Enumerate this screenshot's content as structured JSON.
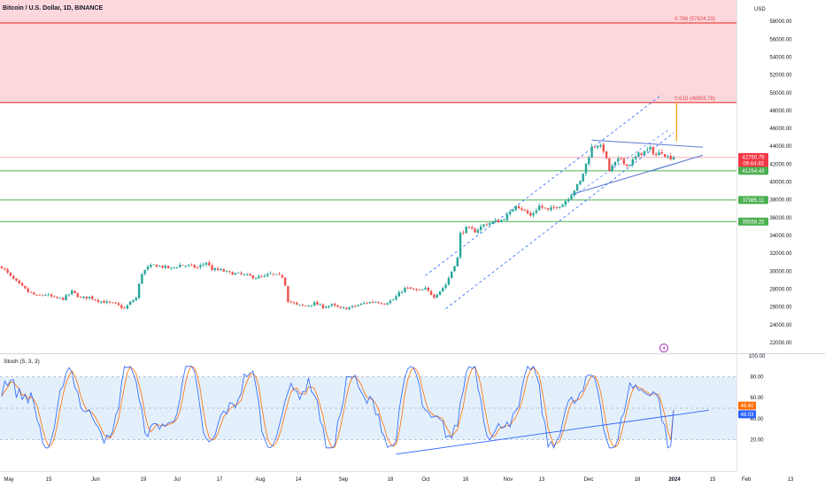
{
  "header": {
    "title": "Bitcoin / U.S. Dollar, 1D, BINANCE",
    "currency": "USD"
  },
  "colors": {
    "up": "#26a69a",
    "down": "#ef5350",
    "resistance": "#e53935",
    "support": "#4caf50",
    "channel": "#2962ff",
    "triangle": "#5b7ccf",
    "fib_zone": "#fcd8dc",
    "stoch_k": "#2962ff",
    "stoch_d": "#ff6d00",
    "stoch_band": "#e3f0fc"
  },
  "chart_data": [
    {
      "type": "candlestick",
      "title": "Bitcoin / U.S. Dollar, 1D, BINANCE",
      "x_ticks": [
        "May",
        "15",
        "Jun",
        "19",
        "Jul",
        "17",
        "Aug",
        "14",
        "Sep",
        "18",
        "Oct",
        "16",
        "Nov",
        "13",
        "Dec",
        "18",
        "2024",
        "15",
        "Feb",
        "13"
      ],
      "y_ticks": [
        "58000.00",
        "56000.00",
        "54000.00",
        "52000.00",
        "50000.00",
        "48000.00",
        "46000.00",
        "44000.00",
        "42000.00",
        "40000.00",
        "38000.00",
        "36000.00",
        "34000.00",
        "32000.00",
        "30000.00",
        "28000.00",
        "26000.00",
        "24000.00",
        "22000.00"
      ],
      "ylim": [
        20800,
        60400
      ],
      "grid": false,
      "fib_levels": [
        {
          "label": "0.786 (57824.23)",
          "value": 57824.23
        },
        {
          "label": "0.618 (48903.78)",
          "value": 48903.78
        }
      ],
      "price_tags": [
        {
          "value": 42750.79,
          "label": "42750.79",
          "sublabel": "09:44:43",
          "color": "#f23645"
        },
        {
          "value": 41254.43,
          "label": "41254.43",
          "color": "#4caf50"
        },
        {
          "value": 37985.11,
          "label": "37985.11",
          "color": "#4caf50"
        },
        {
          "value": 35558.25,
          "label": "35558.25",
          "color": "#4caf50"
        }
      ],
      "close_path": [
        [
          0,
          30500
        ],
        [
          3,
          29400
        ],
        [
          6,
          28500
        ],
        [
          9,
          27700
        ],
        [
          12,
          27200
        ],
        [
          15,
          27400
        ],
        [
          18,
          27000
        ],
        [
          21,
          26900
        ],
        [
          24,
          27700
        ],
        [
          27,
          27000
        ],
        [
          30,
          27100
        ],
        [
          33,
          26700
        ],
        [
          36,
          26500
        ],
        [
          39,
          26300
        ],
        [
          42,
          25800
        ],
        [
          44,
          26500
        ],
        [
          46,
          27000
        ],
        [
          47,
          28500
        ],
        [
          48,
          29800
        ],
        [
          50,
          30400
        ],
        [
          52,
          30700
        ],
        [
          55,
          30500
        ],
        [
          58,
          30300
        ],
        [
          61,
          30700
        ],
        [
          64,
          30600
        ],
        [
          67,
          30400
        ],
        [
          70,
          31000
        ],
        [
          72,
          30200
        ],
        [
          75,
          30100
        ],
        [
          78,
          29800
        ],
        [
          81,
          29700
        ],
        [
          84,
          29500
        ],
        [
          87,
          29300
        ],
        [
          90,
          29400
        ],
        [
          92,
          29700
        ],
        [
          94,
          29500
        ],
        [
          96,
          29400
        ],
        [
          97,
          28500
        ],
        [
          98,
          26700
        ],
        [
          101,
          26200
        ],
        [
          104,
          26100
        ],
        [
          107,
          26400
        ],
        [
          110,
          26000
        ],
        [
          113,
          26200
        ],
        [
          116,
          25800
        ],
        [
          119,
          25900
        ],
        [
          122,
          26200
        ],
        [
          125,
          26500
        ],
        [
          128,
          26600
        ],
        [
          131,
          26400
        ],
        [
          134,
          26800
        ],
        [
          136,
          27500
        ],
        [
          138,
          28100
        ],
        [
          140,
          28000
        ],
        [
          143,
          27800
        ],
        [
          145,
          28000
        ],
        [
          148,
          27200
        ],
        [
          150,
          27800
        ],
        [
          152,
          28500
        ],
        [
          154,
          30000
        ],
        [
          156,
          31500
        ],
        [
          157,
          34200
        ],
        [
          159,
          34800
        ],
        [
          162,
          34500
        ],
        [
          165,
          35200
        ],
        [
          168,
          35500
        ],
        [
          171,
          35700
        ],
        [
          174,
          36500
        ],
        [
          176,
          37500
        ],
        [
          178,
          37000
        ],
        [
          181,
          36200
        ],
        [
          184,
          37300
        ],
        [
          187,
          36800
        ],
        [
          190,
          37300
        ],
        [
          192,
          37500
        ],
        [
          195,
          38700
        ],
        [
          198,
          40000
        ],
        [
          200,
          42000
        ],
        [
          202,
          43900
        ],
        [
          204,
          44200
        ],
        [
          206,
          43600
        ],
        [
          208,
          41300
        ],
        [
          210,
          42100
        ],
        [
          212,
          42700
        ],
        [
          214,
          41800
        ],
        [
          216,
          42400
        ],
        [
          218,
          43100
        ],
        [
          220,
          43400
        ],
        [
          222,
          43700
        ],
        [
          224,
          43000
        ],
        [
          226,
          43400
        ],
        [
          228,
          42800
        ],
        [
          230,
          42750.79
        ]
      ]
    },
    {
      "type": "line",
      "title": "Stoch (5, 3, 3)",
      "y_ticks": [
        "100.00",
        "80.00",
        "60.00",
        "40.00",
        "20.00"
      ],
      "ylim": [
        0,
        100
      ],
      "band": [
        20,
        80
      ],
      "mid_line": 50,
      "series": [
        {
          "label": "48.60",
          "value": 48.6,
          "color": "#ff6d00"
        },
        {
          "label": "48.03",
          "value": 48.03,
          "color": "#2962ff"
        }
      ]
    }
  ]
}
